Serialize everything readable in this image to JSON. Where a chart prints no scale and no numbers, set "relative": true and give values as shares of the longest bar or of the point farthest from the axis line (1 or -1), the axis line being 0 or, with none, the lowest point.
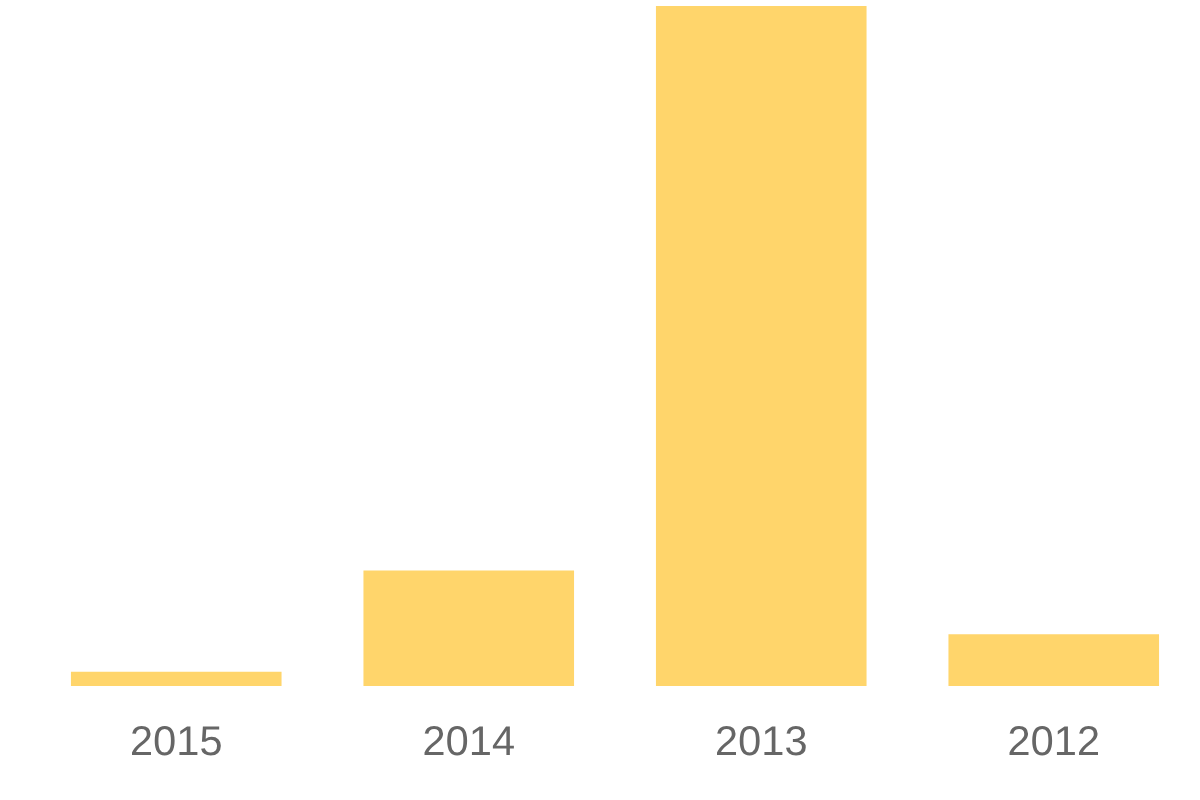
{
  "chart_data": {
    "type": "bar",
    "relative": true,
    "categories": [
      "2015",
      "2014",
      "2013",
      "2012"
    ],
    "values": [
      0.021,
      0.17,
      1,
      0.076
    ],
    "color": "#ffd56b",
    "grid": false,
    "legend": false
  }
}
